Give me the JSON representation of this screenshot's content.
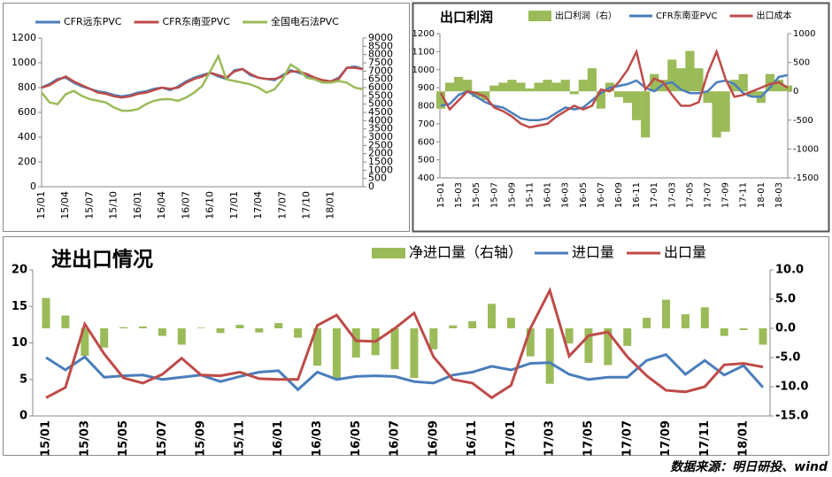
{
  "chart_data": [
    {
      "type": "line",
      "categories": [
        "15/01",
        null,
        null,
        "15/04",
        null,
        null,
        "15/07",
        null,
        null,
        "15/10",
        null,
        null,
        "16/01",
        null,
        null,
        "16/04",
        null,
        null,
        "16/07",
        null,
        null,
        "16/10",
        null,
        null,
        "17/01",
        null,
        null,
        "17/04",
        null,
        null,
        "17/07",
        null,
        null,
        "17/10",
        null,
        null,
        "18/01",
        null,
        null,
        null,
        null
      ],
      "series": [
        {
          "name": "CFR远东PVC",
          "type": "line",
          "color": "#4a7ebb",
          "values": [
            800,
            830,
            870,
            880,
            840,
            810,
            790,
            770,
            760,
            740,
            730,
            740,
            760,
            770,
            790,
            800,
            780,
            810,
            850,
            880,
            900,
            920,
            890,
            870,
            940,
            950,
            900,
            880,
            870,
            860,
            900,
            940,
            920,
            900,
            870,
            860,
            850,
            880,
            960,
            970,
            950
          ]
        },
        {
          "name": "CFR东南亚PVC",
          "type": "line",
          "color": "#be4b48",
          "values": [
            800,
            820,
            860,
            890,
            850,
            820,
            790,
            760,
            750,
            730,
            720,
            730,
            750,
            760,
            780,
            800,
            790,
            800,
            840,
            870,
            890,
            920,
            900,
            880,
            930,
            950,
            910,
            880,
            870,
            870,
            890,
            930,
            930,
            910,
            880,
            860,
            850,
            870,
            960,
            960,
            950
          ]
        },
        {
          "name": "全国电石法PVC",
          "type": "line",
          "axis": "y2",
          "color": "#9bbb59",
          "values": [
            5700,
            5100,
            5000,
            5600,
            5800,
            5500,
            5300,
            5200,
            5100,
            4800,
            4600,
            4600,
            4700,
            5000,
            5200,
            5300,
            5300,
            5200,
            5400,
            5700,
            6100,
            7000,
            7900,
            6500,
            6400,
            6300,
            6200,
            6000,
            5700,
            5900,
            6500,
            7400,
            7100,
            6600,
            6500,
            6300,
            6300,
            6400,
            6300,
            6000,
            5900
          ]
        }
      ],
      "ylim": [
        0,
        1200
      ],
      "yticks": [
        0,
        200,
        400,
        600,
        800,
        1000,
        1200
      ],
      "y2lim": [
        0,
        9000
      ],
      "y2ticks": [
        0,
        500,
        1000,
        1500,
        2000,
        2500,
        3000,
        3500,
        4000,
        4500,
        5000,
        5500,
        6000,
        6500,
        7000,
        7500,
        8000,
        8500,
        9000
      ]
    },
    {
      "type": "combo",
      "title": "出口利润",
      "categories": [
        "15-01",
        null,
        "15-03",
        null,
        "15-05",
        null,
        "15-07",
        null,
        "15-09",
        null,
        "15-11",
        null,
        "16-01",
        null,
        "16-03",
        null,
        "16-05",
        null,
        "16-07",
        null,
        "16-09",
        null,
        "16-11",
        null,
        "17-01",
        null,
        "17-03",
        null,
        "17-05",
        null,
        "17-07",
        null,
        "17-09",
        null,
        "17-11",
        null,
        "18-01",
        null,
        "18-03",
        null
      ],
      "series": [
        {
          "name": "出口利润（右）",
          "type": "bar",
          "axis": "y2",
          "color": "#9bbb59",
          "values": [
            -300,
            150,
            250,
            200,
            -100,
            -150,
            100,
            150,
            200,
            150,
            50,
            150,
            200,
            150,
            200,
            -50,
            200,
            400,
            -300,
            150,
            -100,
            -200,
            -500,
            -800,
            300,
            200,
            550,
            400,
            700,
            400,
            -200,
            -800,
            -700,
            200,
            300,
            -100,
            -200,
            300,
            200,
            100
          ]
        },
        {
          "name": "CFR东南亚PVC",
          "type": "line",
          "color": "#4a7ebb",
          "values": [
            800,
            810,
            860,
            880,
            850,
            820,
            800,
            790,
            760,
            730,
            720,
            720,
            730,
            760,
            790,
            780,
            790,
            830,
            870,
            900,
            910,
            920,
            940,
            900,
            880,
            920,
            930,
            890,
            870,
            870,
            880,
            930,
            940,
            920,
            870,
            850,
            850,
            900,
            960,
            970
          ]
        },
        {
          "name": "出口成本",
          "type": "line",
          "color": "#be4b48",
          "values": [
            870,
            780,
            830,
            880,
            870,
            850,
            790,
            770,
            740,
            700,
            680,
            690,
            700,
            740,
            770,
            800,
            780,
            800,
            890,
            880,
            930,
            1000,
            1100,
            890,
            950,
            930,
            860,
            800,
            800,
            820,
            980,
            1100,
            950,
            850,
            860,
            880,
            900,
            920,
            930,
            900
          ]
        }
      ],
      "ylim": [
        400,
        1200
      ],
      "yticks": [
        400,
        500,
        600,
        700,
        800,
        900,
        1000,
        1100,
        1200
      ],
      "y2lim": [
        -1500,
        1000
      ],
      "y2ticks": [
        -1500,
        -1000,
        -500,
        0,
        500,
        1000
      ]
    },
    {
      "type": "combo",
      "title": "进出口情况",
      "categories": [
        "15/01",
        null,
        "15/03",
        null,
        "15/05",
        null,
        "15/07",
        null,
        "15/09",
        null,
        "15/11",
        null,
        "16/01",
        null,
        "16/03",
        null,
        "16/05",
        null,
        "16/07",
        null,
        "16/09",
        null,
        "16/11",
        null,
        "17/01",
        null,
        "17/03",
        null,
        "17/05",
        null,
        "17/07",
        null,
        "17/09",
        null,
        "17/11",
        null,
        "18/01",
        null
      ],
      "series": [
        {
          "name": "净进口量（右轴）",
          "type": "bar",
          "axis": "y2",
          "color": "#9bbb59",
          "values": [
            5.2,
            2.2,
            -4.7,
            -3.3,
            0.2,
            0.3,
            -1.3,
            -2.8,
            0.1,
            -0.8,
            0.6,
            -0.7,
            0.9,
            -1.6,
            -6.4,
            -8.7,
            -5.0,
            -4.6,
            -7.0,
            -8.5,
            -3.6,
            0.5,
            1.2,
            4.2,
            1.8,
            -4.8,
            -9.5,
            -2.6,
            -5.9,
            -6.3,
            -3.0,
            1.8,
            4.9,
            2.4,
            3.6,
            -1.3,
            -0.3,
            -2.8
          ]
        },
        {
          "name": "进口量",
          "type": "line",
          "color": "#4a7ebb",
          "values": [
            8.0,
            6.3,
            8.1,
            5.3,
            5.5,
            5.6,
            5.0,
            5.3,
            5.6,
            4.7,
            5.4,
            6.0,
            6.2,
            3.6,
            6.0,
            5.0,
            5.4,
            5.5,
            5.4,
            4.7,
            4.5,
            5.6,
            6.0,
            6.8,
            6.3,
            7.2,
            7.3,
            5.7,
            5.0,
            5.3,
            5.3,
            7.6,
            8.4,
            5.7,
            7.6,
            5.6,
            6.9,
            3.9
          ]
        },
        {
          "name": "出口量",
          "type": "line",
          "color": "#be4b48",
          "values": [
            2.5,
            3.9,
            12.6,
            8.5,
            5.2,
            4.5,
            5.7,
            7.9,
            5.6,
            5.5,
            6.0,
            5.1,
            5.0,
            5.0,
            12.4,
            13.8,
            10.3,
            10.2,
            12.0,
            14.1,
            8.1,
            5.0,
            4.5,
            2.5,
            4.2,
            12.0,
            17.2,
            8.2,
            11.0,
            11.5,
            8.1,
            5.5,
            3.5,
            3.3,
            4.0,
            7.0,
            7.2,
            6.7
          ]
        }
      ],
      "ylim": [
        0,
        20
      ],
      "yticks": [
        0,
        5,
        10,
        15,
        20
      ],
      "y2lim": [
        -15,
        10
      ],
      "y2ticks": [
        {
          "value": -15,
          "label": "-15.0"
        },
        {
          "value": -10,
          "label": "-10.0"
        },
        {
          "value": -5,
          "label": "-5.0"
        },
        {
          "value": 0,
          "label": "0.0"
        },
        {
          "value": 5,
          "label": "5.0"
        },
        {
          "value": 10,
          "label": "10.0"
        }
      ]
    }
  ],
  "source": "数据来源：明日研投、wind"
}
